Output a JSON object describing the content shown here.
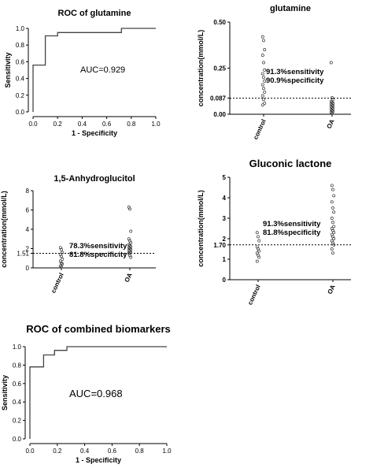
{
  "chart_data": [
    {
      "type": "line",
      "title": "ROC of glutamine",
      "xlabel": "1 - Specificity",
      "ylabel": "Sensitivity",
      "xlim": [
        0,
        1.0
      ],
      "ylim": [
        0,
        1.0
      ],
      "xticks": [
        "0.0",
        "0.2",
        "0.4",
        "0.6",
        "0.8",
        "1.0"
      ],
      "yticks": [
        "0.0",
        "0.2",
        "0.4",
        "0.6",
        "0.8",
        "1.0"
      ],
      "annotation": "AUC=0.929",
      "points": [
        [
          0,
          0
        ],
        [
          0,
          0.56
        ],
        [
          0.1,
          0.56
        ],
        [
          0.1,
          0.91
        ],
        [
          0.2,
          0.91
        ],
        [
          0.2,
          0.95
        ],
        [
          0.72,
          0.95
        ],
        [
          0.72,
          1.0
        ],
        [
          1.0,
          1.0
        ]
      ]
    },
    {
      "type": "scatter",
      "title": "glutamine",
      "ylabel": "concentration(mmol/L)",
      "categories": [
        "control",
        "OA"
      ],
      "yticks": [
        "0.00",
        "0.087",
        "0.25",
        "0.50"
      ],
      "ylim": [
        0,
        0.5
      ],
      "cutoff": 0.087,
      "annotation": [
        "91.3%sensitivity",
        "90.9%specificity"
      ],
      "series": [
        {
          "values": [
            0.42,
            0.4,
            0.35,
            0.32,
            0.28,
            0.24,
            0.22,
            0.2,
            0.18,
            0.16,
            0.14,
            0.12,
            0.1,
            0.08,
            0.06,
            0.05
          ]
        },
        {
          "values": [
            0.28,
            0.09,
            0.08,
            0.07,
            0.065,
            0.06,
            0.055,
            0.05,
            0.045,
            0.04,
            0.035,
            0.03,
            0.025,
            0.02,
            0.015,
            0.01,
            0.005
          ]
        }
      ]
    },
    {
      "type": "scatter",
      "title": "1,5-Anhydroglucitol",
      "ylabel": "concentration(mmol/L)",
      "categories": [
        "control",
        "OA"
      ],
      "yticks": [
        "0",
        "1.51",
        "2",
        "4",
        "6",
        "8"
      ],
      "ylim": [
        0,
        8
      ],
      "cutoff": 1.51,
      "annotation": [
        "78.3%sensitivity",
        "81.8%specificity"
      ],
      "series": [
        {
          "values": [
            2.1,
            1.9,
            1.6,
            1.4,
            1.2,
            0.9,
            0.7,
            0.5,
            0.4,
            0.2,
            0.1
          ]
        },
        {
          "values": [
            6.3,
            6.1,
            3.8,
            3.0,
            2.8,
            2.6,
            2.4,
            2.3,
            2.2,
            2.1,
            2.0,
            1.9,
            1.8,
            1.7,
            1.6,
            1.5,
            1.3,
            1.1
          ]
        }
      ]
    },
    {
      "type": "scatter",
      "title": "Gluconic lactone",
      "ylabel": "concentration(mmol/L)",
      "categories": [
        "control",
        "OA"
      ],
      "yticks": [
        "0",
        "1",
        "1.70",
        "2",
        "3",
        "4",
        "5"
      ],
      "ylim": [
        0,
        5
      ],
      "cutoff": 1.7,
      "annotation": [
        "91.3%sensitivity",
        "81.8%specificity"
      ],
      "series": [
        {
          "values": [
            2.3,
            2.1,
            1.9,
            1.6,
            1.5,
            1.4,
            1.3,
            1.2,
            1.1,
            0.9
          ]
        },
        {
          "values": [
            4.6,
            4.4,
            4.1,
            3.8,
            3.5,
            3.3,
            3.0,
            2.8,
            2.6,
            2.5,
            2.4,
            2.3,
            2.2,
            2.1,
            2.0,
            1.9,
            1.8,
            1.7,
            1.5,
            1.3
          ]
        }
      ]
    },
    {
      "type": "line",
      "title": "ROC of combined biomarkers",
      "xlabel": "1 - Specificity",
      "ylabel": "Sensitivity",
      "xlim": [
        0,
        1.0
      ],
      "ylim": [
        0,
        1.0
      ],
      "xticks": [
        "0.0",
        "0.2",
        "0.4",
        "0.6",
        "0.8",
        "1.0"
      ],
      "yticks": [
        "0.0",
        "0.2",
        "0.4",
        "0.6",
        "0.8",
        "1.0"
      ],
      "annotation": "AUC=0.968",
      "points": [
        [
          0,
          0
        ],
        [
          0,
          0.78
        ],
        [
          0.1,
          0.78
        ],
        [
          0.1,
          0.91
        ],
        [
          0.18,
          0.91
        ],
        [
          0.18,
          0.96
        ],
        [
          0.27,
          0.96
        ],
        [
          0.27,
          1.0
        ],
        [
          1.0,
          1.0
        ]
      ]
    }
  ]
}
